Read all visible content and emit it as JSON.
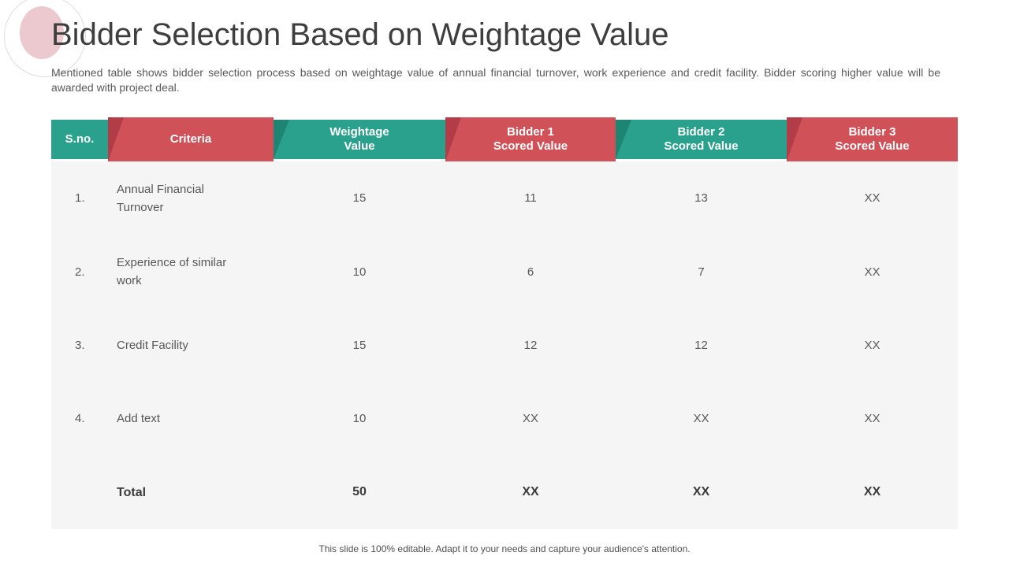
{
  "slide": {
    "title": "Bidder Selection Based on Weightage Value",
    "subtitle": "Mentioned table shows bidder selection process based on weightage value of annual financial turnover, work experience and credit facility. Bidder scoring higher value will be awarded with project deal.",
    "footer": "This slide is 100% editable. Adapt it to your needs and capture your audience's attention."
  },
  "colors": {
    "teal": "#2aa18c",
    "teal-dark": "#1f8573",
    "red": "#d05158",
    "red-dark": "#b23d49",
    "body-bg": "#f5f5f5",
    "pink": "#ecc9ce"
  },
  "table": {
    "column_keys": [
      "sno",
      "criteria",
      "weightage",
      "bidder1",
      "bidder2",
      "bidder3"
    ],
    "headers": [
      {
        "key": "sno",
        "variant": "teal",
        "lines": [
          "S.no."
        ]
      },
      {
        "key": "criteria",
        "variant": "red",
        "lines": [
          "Criteria"
        ]
      },
      {
        "key": "weightage",
        "variant": "teal",
        "lines": [
          "Weightage",
          "Value"
        ]
      },
      {
        "key": "bidder1",
        "variant": "red",
        "lines": [
          "Bidder 1",
          "Scored Value"
        ]
      },
      {
        "key": "bidder2",
        "variant": "teal",
        "lines": [
          "Bidder 2",
          "Scored Value"
        ]
      },
      {
        "key": "bidder3",
        "variant": "red",
        "lines": [
          "Bidder 3",
          "Scored Value"
        ]
      }
    ],
    "rows": [
      {
        "sno": "1.",
        "criteria": "Annual Financial Turnover",
        "weightage": "15",
        "bidder1": "11",
        "bidder2": "13",
        "bidder3": "XX"
      },
      {
        "sno": "2.",
        "criteria": "Experience of similar work",
        "weightage": "10",
        "bidder1": "6",
        "bidder2": "7",
        "bidder3": "XX"
      },
      {
        "sno": "3.",
        "criteria": "Credit Facility",
        "weightage": "15",
        "bidder1": "12",
        "bidder2": "12",
        "bidder3": "XX"
      },
      {
        "sno": "4.",
        "criteria": "Add text",
        "weightage": "10",
        "bidder1": "XX",
        "bidder2": "XX",
        "bidder3": "XX"
      },
      {
        "sno": "",
        "criteria": "Total",
        "weightage": "50",
        "bidder1": "XX",
        "bidder2": "XX",
        "bidder3": "XX",
        "total": true
      }
    ]
  }
}
